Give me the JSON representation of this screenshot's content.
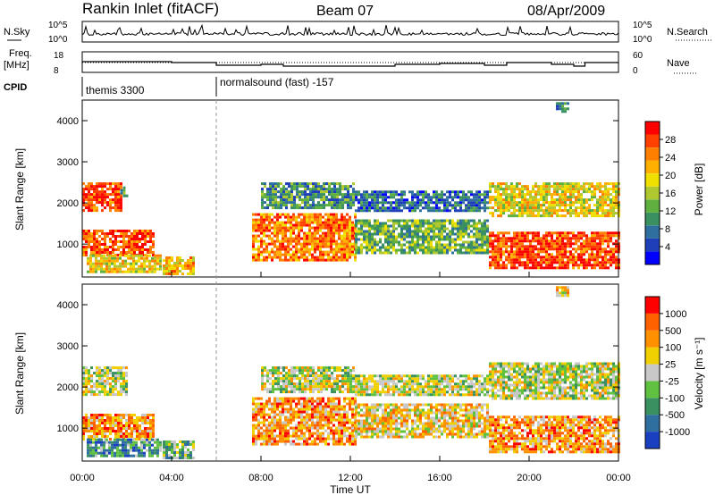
{
  "header": {
    "station": "Rankin Inlet (fitACF)",
    "beam": "Beam 07",
    "date": "08/Apr/2009"
  },
  "status_panels": {
    "nsky": {
      "label": "N.Sky",
      "tick_top": "10^5",
      "tick_bottom": "10^0"
    },
    "nsearch": {
      "label": "N.Search",
      "tick_top": "10^5",
      "tick_bottom": "10^0"
    },
    "freq": {
      "label_line1": "Freq.",
      "label_line2": "[MHz]",
      "tick_top": "18",
      "tick_bottom": "8"
    },
    "nave": {
      "label": "Nave",
      "tick_top": "60",
      "tick_bottom": "0"
    },
    "cpid": {
      "label": "CPID",
      "modes": [
        {
          "name": "themis 3300",
          "start_hour": 0
        },
        {
          "name": "normalsound (fast) -157",
          "start_hour": 6
        }
      ]
    }
  },
  "colorbars": {
    "power": {
      "label": "Power [dB]",
      "ticks": [
        "28",
        "24",
        "20",
        "16",
        "12",
        "8",
        "4"
      ],
      "colors": [
        "#0000ff",
        "#1f3fb8",
        "#2e6fa0",
        "#3a9060",
        "#60b040",
        "#b0c830",
        "#f0e000",
        "#ffb000",
        "#ff8000",
        "#ff4000",
        "#ff0000"
      ]
    },
    "velocity": {
      "label": "Velocity [m s⁻¹]",
      "ticks": [
        "1000",
        "500",
        "100",
        "25",
        "-25",
        "-100",
        "-500",
        "-1000"
      ],
      "colors": [
        "#1a3fc0",
        "#2e6fa0",
        "#3a9060",
        "#60c040",
        "#c8c8c8",
        "#f0d000",
        "#ff9000",
        "#ff6000",
        "#ff0000"
      ]
    }
  },
  "chart_data": [
    {
      "type": "heatmap",
      "name": "power",
      "ylabel": "Slant Range [km]",
      "xlim": [
        0,
        24
      ],
      "ylim": [
        200,
        4500
      ],
      "yticks": [
        "1000",
        "2000",
        "3000",
        "4000"
      ],
      "xticks": [
        "00:00",
        "04:00",
        "08:00",
        "12:00",
        "16:00",
        "20:00",
        "00:00"
      ],
      "bands": [
        {
          "t0": 0.0,
          "t1": 1.7,
          "r0": 1800,
          "r1": 2500,
          "level": 9
        },
        {
          "t0": 1.7,
          "t1": 2.0,
          "r0": 2200,
          "r1": 2400,
          "level": 3
        },
        {
          "t0": 0.0,
          "t1": 3.2,
          "r0": 750,
          "r1": 1350,
          "level": 9
        },
        {
          "t0": 0.2,
          "t1": 3.5,
          "r0": 350,
          "r1": 750,
          "level": 6
        },
        {
          "t0": 3.6,
          "t1": 5.0,
          "r0": 300,
          "r1": 700,
          "level": 7
        },
        {
          "t0": 7.6,
          "t1": 12.2,
          "r0": 600,
          "r1": 1750,
          "level": 8
        },
        {
          "t0": 8.0,
          "t1": 12.2,
          "r0": 1900,
          "r1": 2500,
          "level": 3
        },
        {
          "t0": 12.2,
          "t1": 18.2,
          "r0": 800,
          "r1": 1600,
          "level": 4
        },
        {
          "t0": 12.2,
          "t1": 18.2,
          "r0": 1800,
          "r1": 2300,
          "level": 2
        },
        {
          "t0": 18.2,
          "t1": 24.0,
          "r0": 400,
          "r1": 1300,
          "level": 9
        },
        {
          "t0": 18.2,
          "t1": 24.0,
          "r0": 1700,
          "r1": 2500,
          "level": 6
        },
        {
          "t0": 21.2,
          "t1": 21.7,
          "r0": 4250,
          "r1": 4450,
          "level": 3
        }
      ]
    },
    {
      "type": "heatmap",
      "name": "velocity",
      "ylabel": "Slant Range [km]",
      "xlabel": "Time UT",
      "xlim": [
        0,
        24
      ],
      "ylim": [
        200,
        4500
      ],
      "yticks": [
        "1000",
        "2000",
        "3000",
        "4000"
      ],
      "xticks": [
        "00:00",
        "04:00",
        "08:00",
        "12:00",
        "16:00",
        "20:00",
        "00:00"
      ],
      "bands": [
        {
          "t0": 0.0,
          "t1": 2.0,
          "r0": 1800,
          "r1": 2500,
          "level": 4
        },
        {
          "t0": 0.0,
          "t1": 3.2,
          "r0": 750,
          "r1": 1350,
          "level": 6
        },
        {
          "t0": 0.2,
          "t1": 3.5,
          "r0": 350,
          "r1": 750,
          "level": 2
        },
        {
          "t0": 3.6,
          "t1": 5.0,
          "r0": 300,
          "r1": 700,
          "level": 3
        },
        {
          "t0": 7.6,
          "t1": 12.2,
          "r0": 600,
          "r1": 1750,
          "level": 6
        },
        {
          "t0": 8.0,
          "t1": 12.2,
          "r0": 1900,
          "r1": 2500,
          "level": 4
        },
        {
          "t0": 12.2,
          "t1": 18.2,
          "r0": 800,
          "r1": 1600,
          "level": 5
        },
        {
          "t0": 12.2,
          "t1": 18.2,
          "r0": 1800,
          "r1": 2300,
          "level": 4
        },
        {
          "t0": 18.2,
          "t1": 24.0,
          "r0": 400,
          "r1": 1300,
          "level": 6
        },
        {
          "t0": 18.2,
          "t1": 24.0,
          "r0": 1700,
          "r1": 2600,
          "level": 4
        },
        {
          "t0": 21.2,
          "t1": 21.7,
          "r0": 4250,
          "r1": 4450,
          "level": 5
        }
      ]
    }
  ]
}
